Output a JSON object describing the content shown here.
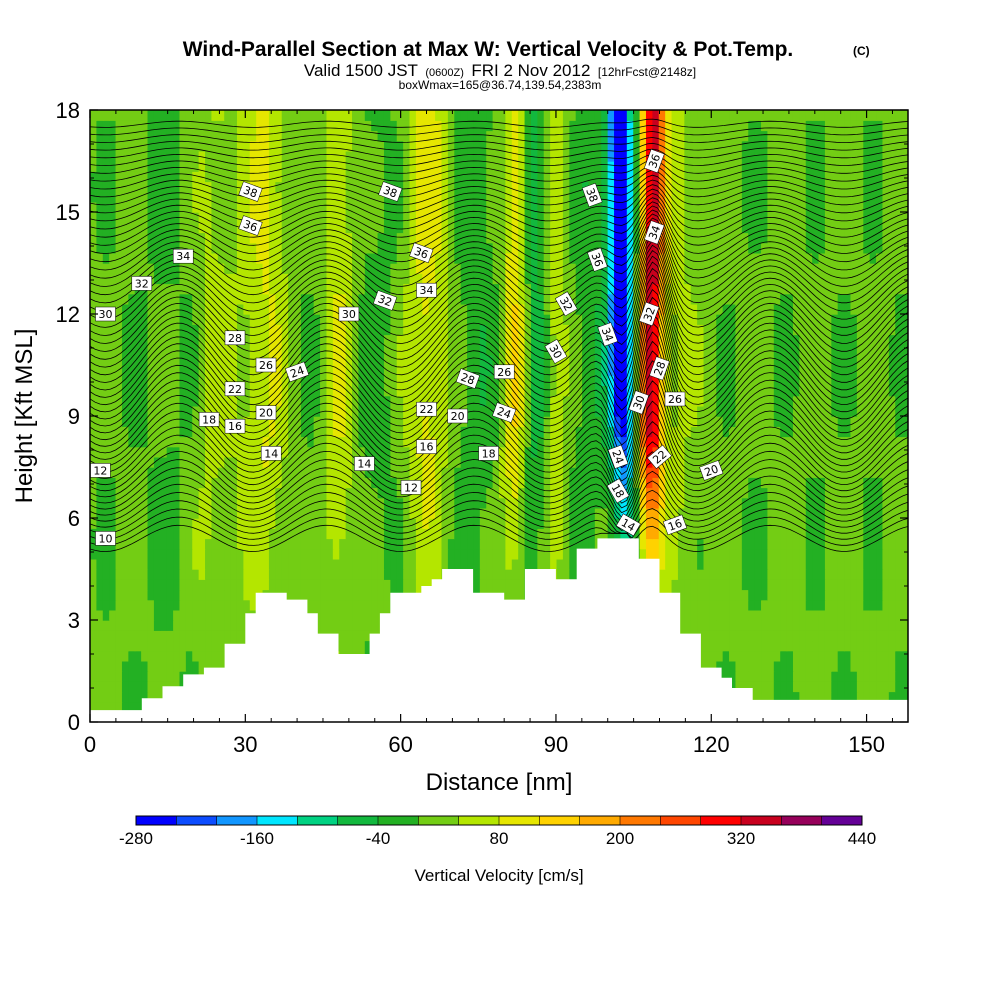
{
  "chart_data": {
    "type": "heatmap",
    "title": "Wind-Parallel Section at Max W: Vertical Velocity & Pot.Temp.",
    "copyright_mark": "(C)",
    "subtitle_valid": "Valid 1500 JST",
    "subtitle_utc": "(0600Z)",
    "subtitle_date": "FRI 2 Nov 2012",
    "subtitle_fcst": "[12hrFcst@2148z]",
    "subtitle_box": "boxWmax=165@36.74,139.54,2383m",
    "xlabel": "Distance [nm]",
    "ylabel": "Height [Kft MSL]",
    "xlim": [
      0,
      158
    ],
    "ylim": [
      0,
      18
    ],
    "x_ticks": [
      "0",
      "30",
      "60",
      "90",
      "120",
      "150"
    ],
    "x_tick_values": [
      0,
      30,
      60,
      90,
      120,
      150
    ],
    "y_ticks": [
      "0",
      "3",
      "6",
      "9",
      "12",
      "15",
      "18"
    ],
    "y_tick_values": [
      0,
      3,
      6,
      9,
      12,
      15,
      18
    ],
    "colorbar": {
      "label": "Vertical Velocity [cm/s]",
      "min": -280,
      "max": 440,
      "step": 40,
      "tick_labels": [
        "-280",
        "-160",
        "-40",
        "80",
        "200",
        "320",
        "440"
      ],
      "tick_values": [
        -280,
        -160,
        -40,
        80,
        200,
        320,
        440
      ],
      "colors": [
        "#0000ff",
        "#0c4cff",
        "#1196ff",
        "#00e6ff",
        "#00d282",
        "#12b83e",
        "#23b023",
        "#73cd14",
        "#b4e600",
        "#e6e600",
        "#ffd200",
        "#ffaa00",
        "#ff7800",
        "#ff4600",
        "#ff0000",
        "#c8001e",
        "#96005a",
        "#640096"
      ]
    },
    "velocity_features": [
      {
        "x": 16,
        "value": -10,
        "width": 7
      },
      {
        "x": 24,
        "value": 40,
        "width": 4
      },
      {
        "x": 34,
        "value": 75,
        "width": 5
      },
      {
        "x": 40,
        "value": -15,
        "width": 4
      },
      {
        "x": 48,
        "value": 70,
        "width": 3
      },
      {
        "x": 55,
        "value": -20,
        "width": 4
      },
      {
        "x": 65,
        "value": 85,
        "width": 4
      },
      {
        "x": 75,
        "value": -35,
        "width": 4
      },
      {
        "x": 82,
        "value": 110,
        "width": 2.5
      },
      {
        "x": 86,
        "value": -70,
        "width": 2.5
      },
      {
        "x": 90,
        "value": 70,
        "width": 2.5
      },
      {
        "x": 103,
        "value": -265,
        "width": 2.2
      },
      {
        "x": 108,
        "value": 330,
        "width": 2.2
      },
      {
        "x": 100,
        "value": -40,
        "width": 8
      },
      {
        "x": 112,
        "value": 40,
        "width": 6
      }
    ],
    "terrain_x": [
      0,
      2,
      4,
      6,
      8,
      10,
      12,
      14,
      16,
      18,
      20,
      22,
      24,
      26,
      28,
      30,
      32,
      34,
      36,
      38,
      40,
      42,
      44,
      46,
      48,
      50,
      52,
      54,
      56,
      58,
      60,
      62,
      64,
      66,
      68,
      70,
      72,
      74,
      76,
      78,
      80,
      82,
      84,
      86,
      88,
      90,
      92,
      94,
      96,
      98,
      100,
      102,
      104,
      106,
      108,
      110,
      112,
      114,
      116,
      118,
      120,
      122,
      124,
      126,
      128,
      130,
      132,
      134,
      136,
      138,
      140,
      142,
      144,
      146,
      148,
      150,
      152,
      154,
      156,
      158
    ],
    "terrain_kft": [
      0.35,
      0.35,
      0.35,
      0.35,
      0.35,
      0.7,
      0.7,
      1.05,
      1.05,
      1.4,
      1.4,
      1.6,
      1.6,
      2.3,
      2.3,
      3.2,
      3.8,
      3.8,
      3.8,
      3.6,
      3.6,
      3.2,
      2.6,
      2.6,
      2.0,
      2.0,
      2.0,
      2.6,
      3.2,
      3.8,
      3.8,
      3.8,
      4.0,
      4.2,
      4.5,
      4.5,
      4.5,
      3.8,
      3.8,
      3.8,
      3.6,
      3.6,
      4.5,
      4.5,
      4.5,
      4.2,
      4.2,
      5.1,
      5.1,
      5.4,
      5.4,
      5.4,
      5.4,
      4.8,
      4.8,
      3.8,
      3.8,
      2.6,
      2.6,
      1.6,
      1.6,
      1.3,
      1.0,
      1.0,
      0.65,
      0.65,
      0.65,
      0.65,
      0.65,
      0.65,
      0.65,
      0.65,
      0.65,
      0.65,
      0.65,
      0.65,
      0.65,
      0.65,
      0.65,
      0.65
    ],
    "theta_contour_levels": [
      10,
      10.5,
      11,
      11.5,
      12,
      12.5,
      13,
      13.5,
      14,
      14.5,
      15,
      15.5,
      16,
      16.5,
      17,
      17.5,
      18,
      18.5,
      19,
      19.5,
      20,
      20.5,
      21,
      21.5,
      22,
      22.5,
      23,
      23.5,
      24,
      24.5,
      25,
      25.5,
      26,
      26.5,
      27,
      27.5,
      28,
      28.5,
      29,
      29.5,
      30,
      30.5,
      31,
      31.5,
      32,
      32.5,
      33,
      33.5,
      34,
      34.5,
      35,
      35.5,
      36,
      36.5,
      37,
      37.5,
      38,
      38.5,
      39
    ],
    "theta_labels": [
      {
        "text": "10",
        "x": 3,
        "y": 5.4,
        "angle": 0
      },
      {
        "text": "12",
        "x": 2,
        "y": 7.4,
        "angle": 0
      },
      {
        "text": "16",
        "x": 28,
        "y": 8.7,
        "angle": 0
      },
      {
        "text": "18",
        "x": 23,
        "y": 8.9,
        "angle": 0
      },
      {
        "text": "20",
        "x": 34,
        "y": 9.1,
        "angle": 0
      },
      {
        "text": "22",
        "x": 28,
        "y": 9.8,
        "angle": 0
      },
      {
        "text": "24",
        "x": 40,
        "y": 10.3,
        "angle": -20
      },
      {
        "text": "26",
        "x": 34,
        "y": 10.5,
        "angle": 0
      },
      {
        "text": "28",
        "x": 28,
        "y": 11.3,
        "angle": 0
      },
      {
        "text": "30",
        "x": 3,
        "y": 12.0,
        "angle": 0
      },
      {
        "text": "32",
        "x": 10,
        "y": 12.9,
        "angle": 0
      },
      {
        "text": "34",
        "x": 18,
        "y": 13.7,
        "angle": 0
      },
      {
        "text": "36",
        "x": 31,
        "y": 14.6,
        "angle": 20
      },
      {
        "text": "38",
        "x": 31,
        "y": 15.6,
        "angle": 20
      },
      {
        "text": "38",
        "x": 58,
        "y": 15.6,
        "angle": 20
      },
      {
        "text": "36",
        "x": 64,
        "y": 13.8,
        "angle": 20
      },
      {
        "text": "34",
        "x": 65,
        "y": 12.7,
        "angle": 0
      },
      {
        "text": "32",
        "x": 57,
        "y": 12.4,
        "angle": 20
      },
      {
        "text": "30",
        "x": 50,
        "y": 12.0,
        "angle": 0
      },
      {
        "text": "28",
        "x": 73,
        "y": 10.1,
        "angle": 20
      },
      {
        "text": "26",
        "x": 80,
        "y": 10.3,
        "angle": 0
      },
      {
        "text": "24",
        "x": 80,
        "y": 9.1,
        "angle": 20
      },
      {
        "text": "22",
        "x": 65,
        "y": 9.2,
        "angle": 0
      },
      {
        "text": "20",
        "x": 71,
        "y": 9.0,
        "angle": 0
      },
      {
        "text": "18",
        "x": 77,
        "y": 7.9,
        "angle": 0
      },
      {
        "text": "16",
        "x": 65,
        "y": 8.1,
        "angle": 0
      },
      {
        "text": "14",
        "x": 53,
        "y": 7.6,
        "angle": 0
      },
      {
        "text": "14",
        "x": 35,
        "y": 7.9,
        "angle": 0
      },
      {
        "text": "12",
        "x": 62,
        "y": 6.9,
        "angle": 0
      },
      {
        "text": "38",
        "x": 97,
        "y": 15.5,
        "angle": 70
      },
      {
        "text": "36",
        "x": 98,
        "y": 13.6,
        "angle": 70
      },
      {
        "text": "34",
        "x": 100,
        "y": 11.4,
        "angle": 70
      },
      {
        "text": "32",
        "x": 92,
        "y": 12.3,
        "angle": 60
      },
      {
        "text": "30",
        "x": 90,
        "y": 10.9,
        "angle": 60
      },
      {
        "text": "24",
        "x": 102,
        "y": 7.8,
        "angle": 70
      },
      {
        "text": "18",
        "x": 102,
        "y": 6.8,
        "angle": 60
      },
      {
        "text": "14",
        "x": 104,
        "y": 5.8,
        "angle": 30
      },
      {
        "text": "36",
        "x": 109,
        "y": 16.5,
        "angle": -70
      },
      {
        "text": "34",
        "x": 109,
        "y": 14.4,
        "angle": -70
      },
      {
        "text": "32",
        "x": 108,
        "y": 12.0,
        "angle": -70
      },
      {
        "text": "28",
        "x": 110,
        "y": 10.4,
        "angle": -70
      },
      {
        "text": "30",
        "x": 106,
        "y": 9.4,
        "angle": -70
      },
      {
        "text": "26",
        "x": 113,
        "y": 9.5,
        "angle": 0
      },
      {
        "text": "22",
        "x": 110,
        "y": 7.8,
        "angle": -40
      },
      {
        "text": "20",
        "x": 120,
        "y": 7.4,
        "angle": -20
      },
      {
        "text": "16",
        "x": 113,
        "y": 5.8,
        "angle": -20
      }
    ]
  }
}
